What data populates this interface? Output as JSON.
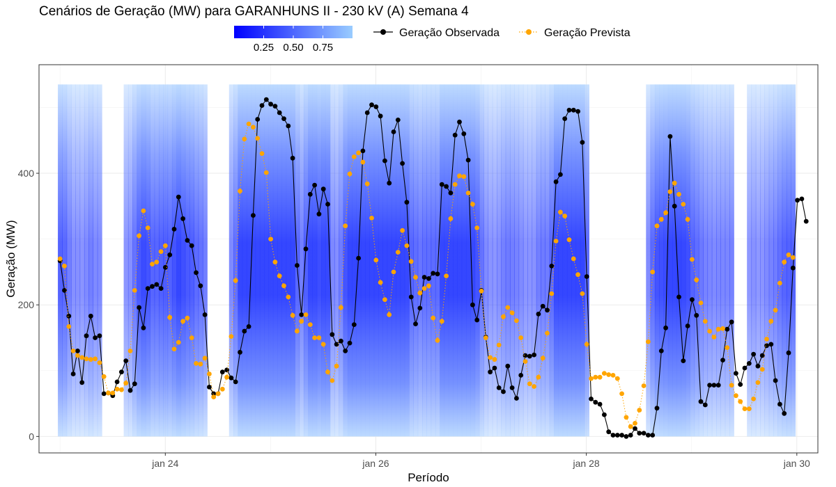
{
  "chart_data": {
    "type": "line",
    "title": "Cenários de Geração (MW) para GARANHUNS II - 230 kV (A) Semana 4",
    "xlabel": "Período",
    "ylabel": "Geração (MW)",
    "xlim": [
      22.8,
      30.2
    ],
    "ylim": [
      -25,
      565
    ],
    "x_ticks": [
      {
        "label": "jan 24",
        "value": 24
      },
      {
        "label": "jan 26",
        "value": 26
      },
      {
        "label": "jan 28",
        "value": 28
      },
      {
        "label": "jan 30",
        "value": 30
      }
    ],
    "y_ticks": [
      {
        "label": "0",
        "value": 0
      },
      {
        "label": "200",
        "value": 200
      },
      {
        "label": "400",
        "value": 400
      }
    ],
    "grid": true,
    "colorbar": {
      "colors": [
        "#0000ff",
        "#99ccff"
      ],
      "tick_labels": [
        "0.25",
        "0.50",
        "0.75"
      ],
      "tick_values": [
        0.25,
        0.5,
        0.75
      ],
      "range": [
        0.0,
        1.0
      ]
    },
    "scenario_band": {
      "min": 0,
      "max": 535
    },
    "x_start": 23.0,
    "x_step_days": 0.0417,
    "series": [
      {
        "name": "Geração Observada",
        "color": "#000000",
        "line_style": "solid",
        "values": [
          267,
          222,
          183,
          95,
          130,
          82,
          153,
          183,
          150,
          153,
          65,
          66,
          62,
          83,
          98,
          115,
          70,
          80,
          196,
          165,
          225,
          228,
          231,
          225,
          257,
          276,
          315,
          364,
          331,
          298,
          290,
          249,
          229,
          185,
          75,
          65,
          65,
          98,
          101,
          89,
          83,
          128,
          160,
          167,
          336,
          482,
          503,
          512,
          505,
          502,
          492,
          483,
          472,
          423,
          260,
          185,
          285,
          368,
          382,
          338,
          376,
          353,
          155,
          140,
          145,
          130,
          142,
          170,
          271,
          434,
          492,
          504,
          501,
          487,
          419,
          385,
          463,
          481,
          415,
          356,
          212,
          171,
          195,
          242,
          240,
          248,
          247,
          383,
          380,
          370,
          458,
          478,
          460,
          420,
          200,
          177,
          222,
          151,
          98,
          104,
          74,
          68,
          107,
          74,
          58,
          93,
          123,
          122,
          124,
          186,
          198,
          192,
          259,
          387,
          398,
          483,
          496,
          496,
          494,
          447,
          243,
          57,
          52,
          49,
          33,
          7,
          2,
          2,
          2,
          0,
          2,
          12,
          5,
          5,
          2,
          2,
          43,
          130,
          165,
          456,
          350,
          212,
          115,
          168,
          208,
          184,
          53,
          48,
          78,
          78,
          78,
          116,
          163,
          174,
          96,
          79,
          104,
          111,
          125,
          107,
          123,
          138,
          140,
          85,
          49,
          35,
          127,
          256,
          359,
          361,
          327
        ]
      },
      {
        "name": "Geração Prevista",
        "color": "#ffa500",
        "line_style": "dotted",
        "values": [
          270,
          259,
          167,
          130,
          123,
          120,
          118,
          117,
          118,
          112,
          91,
          66,
          66,
          72,
          71,
          81,
          130,
          222,
          305,
          343,
          317,
          262,
          265,
          281,
          290,
          181,
          133,
          143,
          175,
          180,
          150,
          111,
          110,
          119,
          95,
          60,
          65,
          72,
          90,
          152,
          237,
          373,
          452,
          475,
          470,
          453,
          430,
          401,
          300,
          265,
          244,
          229,
          212,
          184,
          160,
          175,
          185,
          170,
          150,
          150,
          140,
          98,
          85,
          107,
          196,
          320,
          399,
          425,
          431,
          417,
          384,
          332,
          268,
          234,
          208,
          185,
          250,
          280,
          313,
          290,
          266,
          242,
          218,
          225,
          229,
          180,
          146,
          175,
          244,
          331,
          383,
          396,
          395,
          370,
          353,
          317,
          221,
          150,
          120,
          117,
          139,
          182,
          196,
          188,
          176,
          150,
          114,
          80,
          76,
          90,
          119,
          157,
          217,
          297,
          341,
          335,
          299,
          270,
          246,
          217,
          140,
          88,
          90,
          90,
          96,
          94,
          93,
          88,
          65,
          29,
          15,
          20,
          40,
          77,
          144,
          250,
          320,
          330,
          340,
          372,
          385,
          368,
          353,
          330,
          269,
          238,
          203,
          175,
          160,
          151,
          163,
          164,
          135,
          78,
          62,
          53,
          42,
          42,
          57,
          82,
          102,
          148,
          175,
          192,
          233,
          265,
          276,
          272
        ]
      }
    ]
  }
}
